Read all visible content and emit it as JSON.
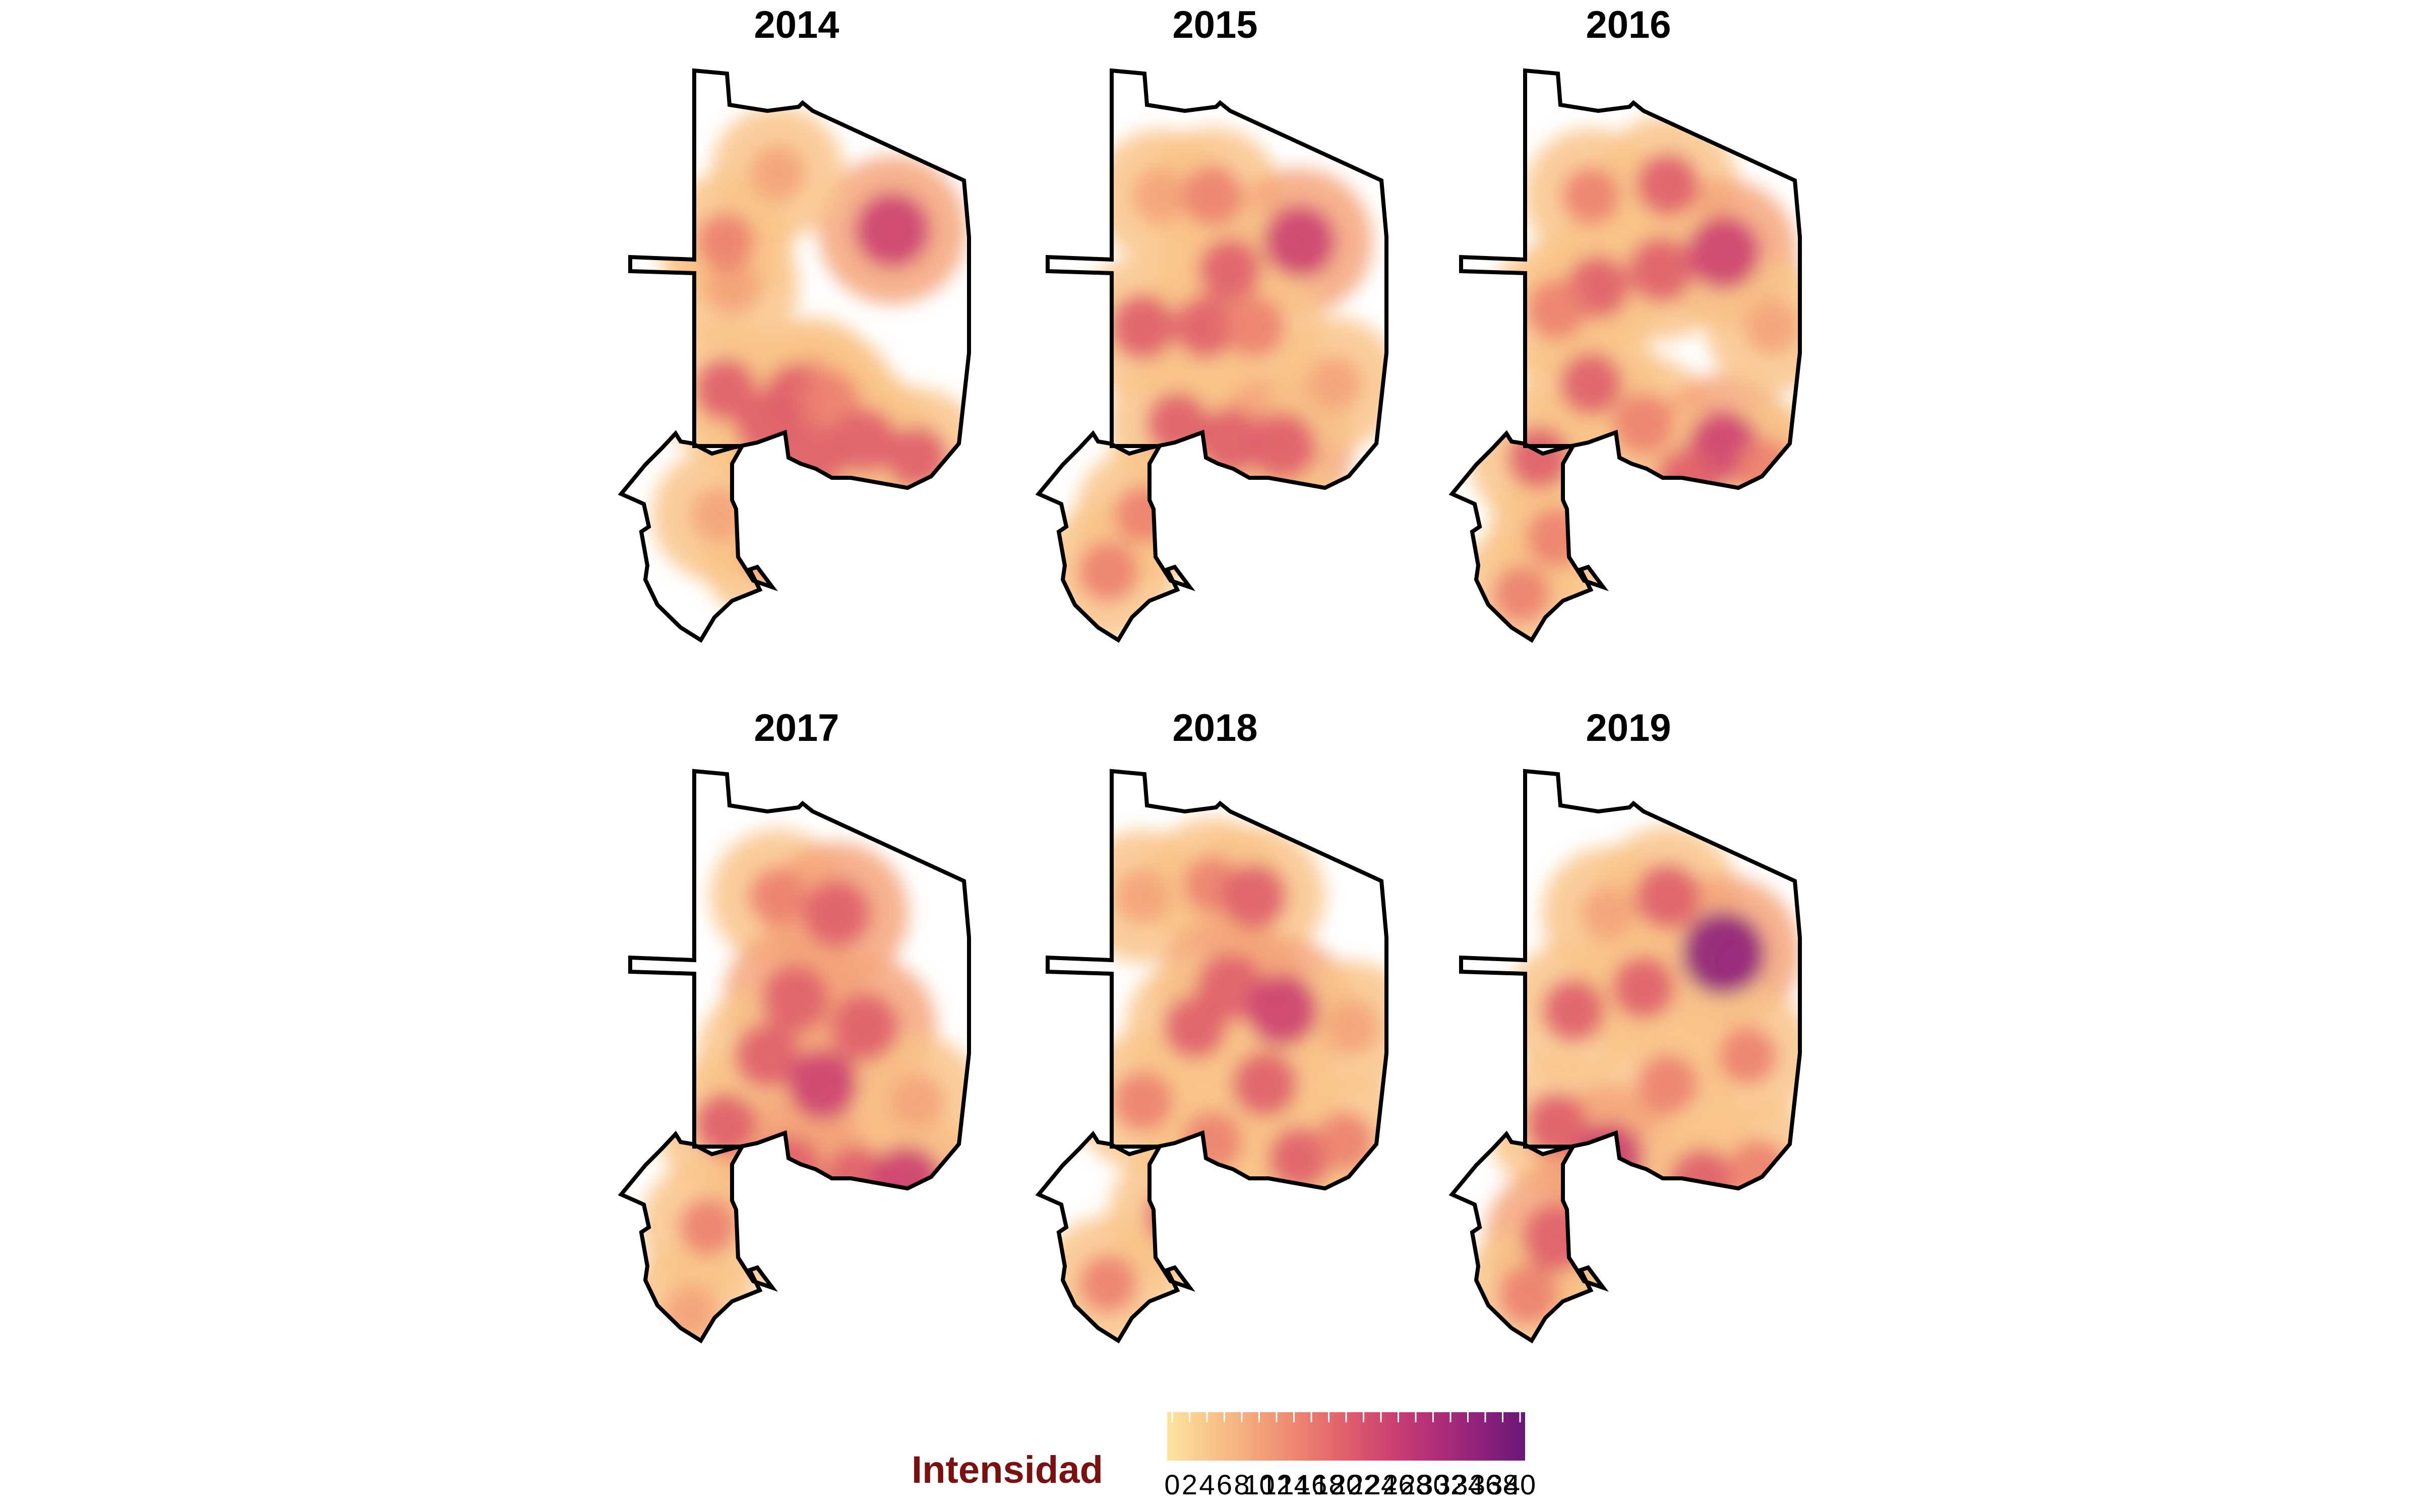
{
  "panels": [
    {
      "year": "2014",
      "hotspots": [
        [
          0.32,
          0.38,
          0.3
        ],
        [
          0.78,
          0.28,
          0.68
        ],
        [
          0.55,
          0.55,
          0.3
        ],
        [
          0.3,
          0.56,
          0.45
        ],
        [
          0.5,
          0.57,
          0.45
        ],
        [
          0.6,
          0.58,
          0.4
        ],
        [
          0.42,
          0.62,
          0.5
        ],
        [
          0.55,
          0.68,
          0.55
        ],
        [
          0.7,
          0.65,
          0.5
        ],
        [
          0.85,
          0.68,
          0.45
        ],
        [
          0.28,
          0.78,
          0.3
        ],
        [
          0.42,
          0.85,
          0.3
        ],
        [
          0.3,
          0.3,
          0.35
        ],
        [
          0.45,
          0.18,
          0.3
        ]
      ]
    },
    {
      "year": "2015",
      "hotspots": [
        [
          0.35,
          0.22,
          0.3
        ],
        [
          0.5,
          0.22,
          0.4
        ],
        [
          0.75,
          0.3,
          0.62
        ],
        [
          0.55,
          0.35,
          0.45
        ],
        [
          0.3,
          0.45,
          0.5
        ],
        [
          0.48,
          0.45,
          0.45
        ],
        [
          0.62,
          0.45,
          0.42
        ],
        [
          0.4,
          0.62,
          0.45
        ],
        [
          0.55,
          0.65,
          0.5
        ],
        [
          0.7,
          0.66,
          0.55
        ],
        [
          0.85,
          0.55,
          0.3
        ],
        [
          0.3,
          0.78,
          0.35
        ],
        [
          0.2,
          0.88,
          0.4
        ],
        [
          0.72,
          0.8,
          0.4
        ]
      ]
    },
    {
      "year": "2016",
      "hotspots": [
        [
          0.4,
          0.22,
          0.35
        ],
        [
          0.62,
          0.2,
          0.45
        ],
        [
          0.78,
          0.32,
          0.65
        ],
        [
          0.6,
          0.35,
          0.5
        ],
        [
          0.42,
          0.38,
          0.45
        ],
        [
          0.3,
          0.42,
          0.4
        ],
        [
          0.4,
          0.55,
          0.45
        ],
        [
          0.55,
          0.62,
          0.42
        ],
        [
          0.78,
          0.66,
          0.6
        ],
        [
          0.68,
          0.72,
          0.5
        ],
        [
          0.9,
          0.7,
          0.4
        ],
        [
          0.25,
          0.68,
          0.45
        ],
        [
          0.3,
          0.82,
          0.4
        ],
        [
          0.2,
          0.92,
          0.35
        ],
        [
          0.92,
          0.45,
          0.3
        ]
      ]
    },
    {
      "year": "2017",
      "hotspots": [
        [
          0.45,
          0.22,
          0.35
        ],
        [
          0.62,
          0.25,
          0.55
        ],
        [
          0.5,
          0.4,
          0.55
        ],
        [
          0.7,
          0.45,
          0.55
        ],
        [
          0.42,
          0.5,
          0.5
        ],
        [
          0.58,
          0.55,
          0.58
        ],
        [
          0.3,
          0.62,
          0.45
        ],
        [
          0.48,
          0.7,
          0.55
        ],
        [
          0.68,
          0.72,
          0.55
        ],
        [
          0.82,
          0.72,
          0.6
        ],
        [
          0.55,
          0.82,
          0.5
        ],
        [
          0.25,
          0.8,
          0.35
        ],
        [
          0.2,
          0.95,
          0.3
        ],
        [
          0.85,
          0.58,
          0.3
        ]
      ]
    },
    {
      "year": "2018",
      "hotspots": [
        [
          0.3,
          0.22,
          0.3
        ],
        [
          0.5,
          0.2,
          0.35
        ],
        [
          0.62,
          0.22,
          0.5
        ],
        [
          0.55,
          0.38,
          0.55
        ],
        [
          0.7,
          0.42,
          0.62
        ],
        [
          0.45,
          0.45,
          0.45
        ],
        [
          0.65,
          0.55,
          0.5
        ],
        [
          0.3,
          0.58,
          0.4
        ],
        [
          0.5,
          0.65,
          0.4
        ],
        [
          0.75,
          0.68,
          0.45
        ],
        [
          0.88,
          0.65,
          0.35
        ],
        [
          0.4,
          0.78,
          0.45
        ],
        [
          0.6,
          0.82,
          0.4
        ],
        [
          0.8,
          0.82,
          0.35
        ],
        [
          0.2,
          0.9,
          0.35
        ],
        [
          0.9,
          0.45,
          0.3
        ]
      ]
    },
    {
      "year": "2019",
      "hotspots": [
        [
          0.45,
          0.25,
          0.3
        ],
        [
          0.62,
          0.22,
          0.5
        ],
        [
          0.78,
          0.32,
          0.85
        ],
        [
          0.55,
          0.38,
          0.45
        ],
        [
          0.35,
          0.42,
          0.45
        ],
        [
          0.62,
          0.55,
          0.4
        ],
        [
          0.85,
          0.5,
          0.35
        ],
        [
          0.3,
          0.62,
          0.45
        ],
        [
          0.45,
          0.68,
          0.6
        ],
        [
          0.72,
          0.72,
          0.5
        ],
        [
          0.88,
          0.7,
          0.4
        ],
        [
          0.3,
          0.82,
          0.55
        ],
        [
          0.22,
          0.92,
          0.4
        ],
        [
          0.55,
          0.88,
          0.35
        ]
      ]
    }
  ],
  "legend": {
    "title": "Intensidad",
    "ticks": [
      "0",
      "2",
      "4",
      "6",
      "8",
      "10",
      "12",
      "14",
      "16",
      "18",
      "20",
      "22",
      "24",
      "26",
      "28",
      "30",
      "32",
      "34",
      "36",
      "38",
      "40"
    ],
    "colors": [
      "#fde4a0",
      "#f9c48a",
      "#f4a47a",
      "#ec8170",
      "#df5f6c",
      "#cc4171",
      "#b02e78",
      "#8f217b",
      "#6a1778"
    ]
  }
}
